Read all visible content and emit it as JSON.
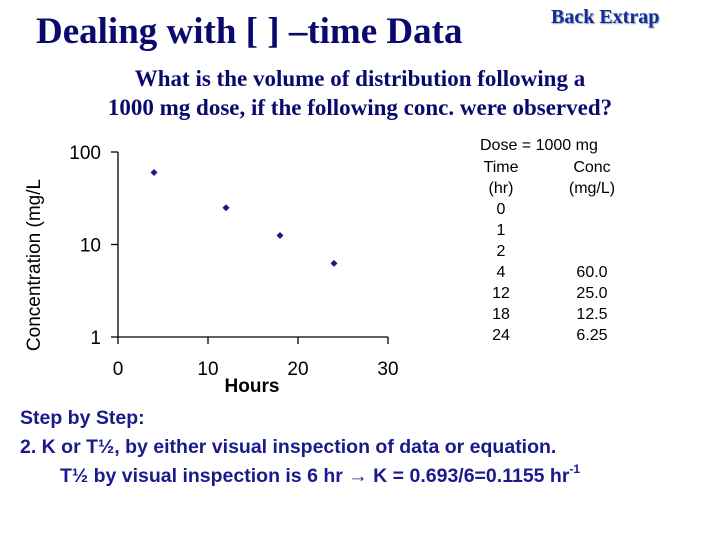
{
  "slide": {
    "title": "Dealing with [ ] –time Data",
    "back_link": "Back Extrap",
    "question_line1": "What is the volume of distribution following a",
    "question_line2": "1000 mg dose, if the following conc. were observed?"
  },
  "table": {
    "dose": "Dose = 1000 mg",
    "header_time": "Time",
    "header_conc": "Conc",
    "unit_time": "(hr)",
    "unit_conc": "(mg/L)",
    "rows": [
      {
        "time": "0",
        "conc": ""
      },
      {
        "time": "1",
        "conc": ""
      },
      {
        "time": "2",
        "conc": ""
      },
      {
        "time": "4",
        "conc": "60.0"
      },
      {
        "time": "12",
        "conc": "25.0"
      },
      {
        "time": "18",
        "conc": "12.5"
      },
      {
        "time": "24",
        "conc": "6.25"
      }
    ]
  },
  "steps": {
    "heading": "Step by Step:",
    "line1": "2.  K or T½, by either visual inspection of data or equation.",
    "line2_pre": "T½ by visual inspection is 6 hr ",
    "arrow": "→",
    "line2_post": " K = 0.693/6=0.1155 hr",
    "line2_sup": "-1"
  },
  "chart_data": {
    "type": "scatter",
    "title": "",
    "xlabel": "Hours",
    "ylabel": "Concentration (mg/L",
    "x": [
      4,
      12,
      18,
      24
    ],
    "y": [
      60,
      25,
      12.5,
      6.25
    ],
    "xlim": [
      0,
      30
    ],
    "ylim": [
      1,
      100
    ],
    "yscale": "log",
    "xticks": [
      0,
      10,
      20,
      30
    ],
    "yticks": [
      1,
      10,
      100
    ],
    "ytick_labels": [
      "1",
      "10",
      "100"
    ],
    "grid": false,
    "marker": "diamond",
    "marker_color": "#1a1a80"
  }
}
